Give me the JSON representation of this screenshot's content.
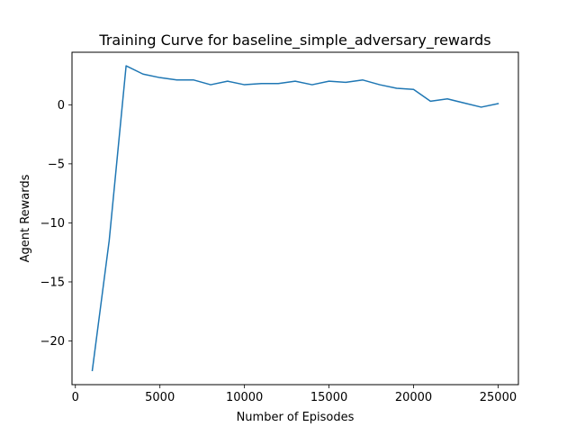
{
  "chart_data": {
    "type": "line",
    "title": "Training Curve for baseline_simple_adversary_rewards",
    "xlabel": "Number of Episodes",
    "ylabel": "Agent Rewards",
    "xlim": [
      -200,
      26200
    ],
    "ylim": [
      -23.7,
      4.45
    ],
    "xticks": [
      0,
      5000,
      10000,
      15000,
      20000,
      25000
    ],
    "xtick_labels": [
      "0",
      "5000",
      "10000",
      "15000",
      "20000",
      "25000"
    ],
    "yticks": [
      -20,
      -15,
      -10,
      -5,
      0
    ],
    "ytick_labels": [
      "−20",
      "−15",
      "−10",
      "−5",
      "0"
    ],
    "grid": false,
    "legend": "none",
    "series": [
      {
        "color": "#1f77b4",
        "x": [
          1000,
          2000,
          3000,
          4000,
          5000,
          6000,
          7000,
          8000,
          9000,
          10000,
          11000,
          12000,
          13000,
          14000,
          15000,
          16000,
          17000,
          18000,
          19000,
          20000,
          21000,
          22000,
          23000,
          24000,
          25000
        ],
        "y": [
          -22.5,
          -11.5,
          3.3,
          2.6,
          2.3,
          2.1,
          2.1,
          1.7,
          2.0,
          1.7,
          1.8,
          1.8,
          2.0,
          1.7,
          2.0,
          1.9,
          2.1,
          1.7,
          1.4,
          1.3,
          0.3,
          0.5,
          0.15,
          -0.2,
          0.1
        ]
      }
    ]
  }
}
